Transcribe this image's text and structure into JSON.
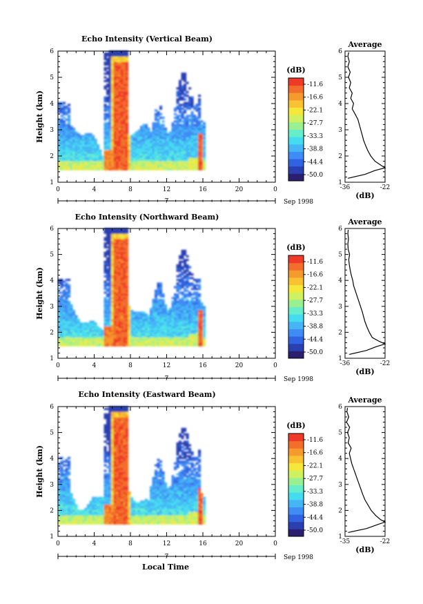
{
  "figure": {
    "date_label": "Sep 1998",
    "xlabel": "Local Time",
    "day_label": "7",
    "colorbar_unit": "(dB)",
    "colorbar_ticks": [
      "-11.6",
      "-16.6",
      "-22.1",
      "-27.7",
      "-33.3",
      "-38.8",
      "-44.4",
      "-50.0"
    ],
    "colorbar_colors": [
      "#2b1f6e",
      "#2a3fb0",
      "#2f63e0",
      "#3f8cf5",
      "#45b5f5",
      "#46dcf0",
      "#66eecc",
      "#98f090",
      "#cff060",
      "#f5e83a",
      "#f8c232",
      "#f59a2c",
      "#f26e2a",
      "#f03a28"
    ]
  },
  "chart_data": [
    {
      "type": "heatmap",
      "title": "Echo Intensity (Vertical Beam)",
      "ylabel": "Height (km)",
      "x_ticks": [
        "0",
        "4",
        "8",
        "12",
        "16",
        "20",
        "0"
      ],
      "y_ticks": [
        "1",
        "2",
        "3",
        "4",
        "5",
        "6"
      ],
      "xlim": [
        0,
        24
      ],
      "ylim": [
        1,
        6
      ],
      "color_scale": [
        -50.0,
        -11.6
      ],
      "average_profile": {
        "title": "Average",
        "xlabel": "(dB)",
        "x_ticks": [
          "-36",
          "-22"
        ],
        "xlim": [
          -36,
          -22
        ],
        "height": [
          1.15,
          1.3,
          1.45,
          1.55,
          1.65,
          1.8,
          2.0,
          2.2,
          2.4,
          2.6,
          2.8,
          3.0,
          3.2,
          3.4,
          3.6,
          3.8,
          4.0,
          4.2,
          4.4,
          4.6,
          4.8,
          5.0,
          5.2,
          5.4,
          5.6,
          5.8,
          5.95
        ],
        "db": [
          -35.0,
          -29.0,
          -25.5,
          -22.0,
          -23.5,
          -25.5,
          -27.0,
          -28.0,
          -28.8,
          -29.5,
          -30.0,
          -30.5,
          -31.0,
          -31.5,
          -32.5,
          -33.5,
          -33.0,
          -34.0,
          -33.5,
          -34.5,
          -34.0,
          -34.8,
          -34.2,
          -35.0,
          -34.5,
          -35.0,
          -34.7
        ]
      }
    },
    {
      "type": "heatmap",
      "title": "Echo Intensity (Northward Beam)",
      "ylabel": "Height (km)",
      "x_ticks": [
        "0",
        "4",
        "8",
        "12",
        "16",
        "20",
        "0"
      ],
      "y_ticks": [
        "1",
        "2",
        "3",
        "4",
        "5",
        "6"
      ],
      "xlim": [
        0,
        24
      ],
      "ylim": [
        1,
        6
      ],
      "color_scale": [
        -50.0,
        -11.6
      ],
      "average_profile": {
        "title": "Average",
        "xlabel": "(dB)",
        "x_ticks": [
          "-36",
          "-22"
        ],
        "xlim": [
          -36,
          -22
        ],
        "height": [
          1.15,
          1.3,
          1.45,
          1.55,
          1.65,
          1.8,
          2.0,
          2.2,
          2.4,
          2.6,
          2.8,
          3.0,
          3.2,
          3.4,
          3.6,
          3.8,
          4.0,
          4.2,
          4.4,
          4.6,
          4.8,
          5.0,
          5.2,
          5.4,
          5.6,
          5.8,
          5.95
        ],
        "db": [
          -34.5,
          -28.5,
          -25.0,
          -22.0,
          -24.0,
          -26.5,
          -27.5,
          -28.3,
          -29.0,
          -29.5,
          -30.0,
          -30.6,
          -31.2,
          -31.8,
          -32.4,
          -33.0,
          -33.3,
          -33.8,
          -34.2,
          -34.5,
          -34.7,
          -34.4,
          -34.9,
          -35.0,
          -34.8,
          -35.0,
          -34.9
        ]
      }
    },
    {
      "type": "heatmap",
      "title": "Echo Intensity (Eastward Beam)",
      "ylabel": "Height (km)",
      "x_ticks": [
        "0",
        "4",
        "8",
        "12",
        "16",
        "20",
        "0"
      ],
      "y_ticks": [
        "1",
        "2",
        "3",
        "4",
        "5",
        "6"
      ],
      "xlim": [
        0,
        24
      ],
      "ylim": [
        1,
        6
      ],
      "color_scale": [
        -50.0,
        -11.6
      ],
      "average_profile": {
        "title": "Average",
        "xlabel": "(dB)",
        "x_ticks": [
          "-35",
          "-22"
        ],
        "xlim": [
          -35,
          -22
        ],
        "height": [
          1.15,
          1.3,
          1.45,
          1.55,
          1.65,
          1.8,
          2.0,
          2.2,
          2.4,
          2.6,
          2.8,
          3.0,
          3.2,
          3.4,
          3.6,
          3.8,
          4.0,
          4.2,
          4.4,
          4.6,
          4.8,
          5.0,
          5.2,
          5.4,
          5.6,
          5.8,
          5.95
        ],
        "db": [
          -34.0,
          -28.0,
          -24.5,
          -22.0,
          -23.5,
          -25.0,
          -26.5,
          -27.5,
          -28.5,
          -29.2,
          -29.8,
          -30.4,
          -31.0,
          -31.6,
          -32.2,
          -32.8,
          -33.2,
          -33.6,
          -33.0,
          -34.0,
          -33.6,
          -34.2,
          -33.5,
          -34.5,
          -33.8,
          -34.4,
          -34.2
        ]
      }
    }
  ]
}
